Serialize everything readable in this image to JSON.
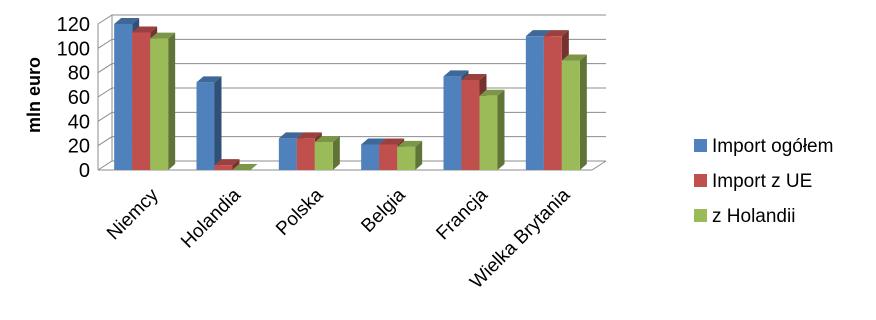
{
  "chart_data": {
    "type": "bar",
    "ylabel": "mln euro",
    "ylim": [
      0,
      120
    ],
    "yticks": [
      0,
      20,
      40,
      60,
      80,
      100,
      120
    ],
    "categories": [
      "Niemcy",
      "Holandia",
      "Polska",
      "Belgia",
      "Francja",
      "Wielka Brytania"
    ],
    "series": [
      {
        "name": "Import ogółem",
        "color": "#4F81BD",
        "values": [
          120,
          72,
          26,
          21,
          77,
          110
        ]
      },
      {
        "name": "Import z UE",
        "color": "#C0504D",
        "values": [
          113,
          4,
          26,
          21,
          74,
          110
        ]
      },
      {
        "name": "z Holandii",
        "color": "#9BBB59",
        "values": [
          108,
          0,
          23,
          19,
          61,
          90
        ]
      }
    ],
    "grid": true,
    "legend": "right"
  }
}
